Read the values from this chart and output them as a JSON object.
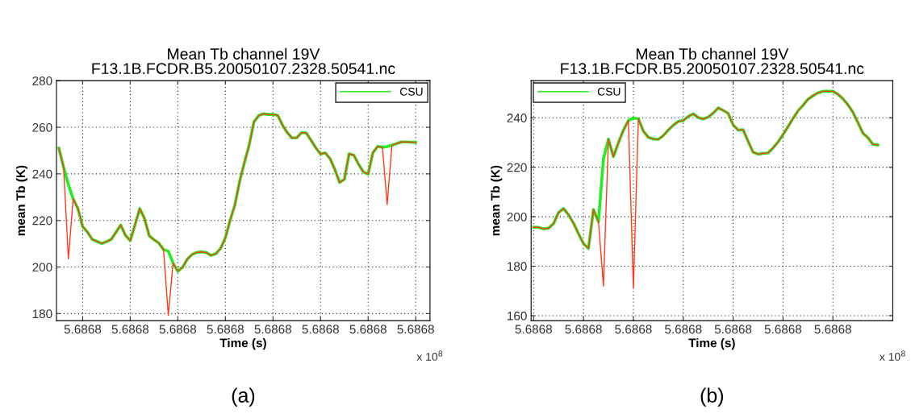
{
  "chart_data": [
    {
      "type": "line",
      "title": "Mean Tb channel 19V\nF13.1B.FCDR.B5.20050107.2328.50541.nc",
      "xlabel": "Time (s)",
      "ylabel": "mean Tb (K)",
      "annotations": [
        "x 10$^{8}$",
        "(a)"
      ],
      "categories": [
        null,
        null,
        null,
        null,
        null,
        "5.6868",
        null,
        null,
        null,
        null,
        null,
        null,
        null,
        null,
        null,
        "5.6868",
        null,
        null,
        null,
        null,
        null,
        null,
        null,
        null,
        null,
        "5.6868",
        null,
        null,
        null,
        null,
        null,
        null,
        null,
        null,
        null,
        "5.6868",
        null,
        null,
        null,
        null,
        null,
        null,
        null,
        null,
        null,
        "5.6868",
        null,
        null,
        null,
        null,
        null,
        null,
        null,
        null,
        null,
        "5.6868",
        null,
        null,
        null,
        null,
        null,
        null,
        null,
        null,
        null,
        "5.6868",
        null,
        null,
        null,
        null,
        null,
        null,
        null,
        null,
        null,
        "5.6868"
      ],
      "ylim": [
        177,
        280
      ],
      "yticks": [
        180,
        200,
        220,
        240,
        260,
        280
      ],
      "grid": true,
      "legend": "top right",
      "series": [
        {
          "name": "CSU",
          "color": "#22ee22",
          "values": [
            251.0,
            242.8,
            235.4,
            229.3,
            225.1,
            217.4,
            215.0,
            211.9,
            211.0,
            210.1,
            210.9,
            211.9,
            214.9,
            218.0,
            213.6,
            211.3,
            218.1,
            225.1,
            220.8,
            213.4,
            211.7,
            210.3,
            207.5,
            206.8,
            201.7,
            198.2,
            199.9,
            203.4,
            205.4,
            206.3,
            206.5,
            206.2,
            205.0,
            205.7,
            208.0,
            212.6,
            220.1,
            226.7,
            236.8,
            244.9,
            252.4,
            262.3,
            265.0,
            265.8,
            265.5,
            265.5,
            265.1,
            260.9,
            257.7,
            255.4,
            255.5,
            257.7,
            257.6,
            254.4,
            251.2,
            248.5,
            249.0,
            246.5,
            241.9,
            236.3,
            237.6,
            248.6,
            248.0,
            244.1,
            240.8,
            239.9,
            249.1,
            251.8,
            251.4,
            251.7,
            252.3,
            253.0,
            253.7,
            253.7,
            253.6,
            253.5
          ]
        },
        {
          "color": "#ff3a1a",
          "values": [
            251.0,
            242.8,
            203.5,
            229.3,
            225.1,
            217.4,
            215.0,
            211.9,
            211.0,
            210.1,
            210.9,
            211.9,
            214.9,
            218.0,
            213.6,
            211.3,
            218.1,
            225.1,
            220.8,
            213.4,
            211.7,
            210.3,
            207.5,
            179.3,
            201.7,
            198.2,
            199.9,
            203.4,
            205.4,
            206.3,
            206.5,
            206.2,
            205.0,
            205.7,
            208.0,
            212.6,
            220.1,
            226.7,
            236.8,
            244.9,
            252.4,
            262.3,
            265.0,
            265.8,
            265.5,
            265.5,
            265.1,
            260.9,
            257.7,
            255.4,
            255.5,
            257.7,
            257.6,
            254.4,
            251.2,
            248.5,
            249.0,
            246.5,
            241.9,
            236.3,
            237.6,
            248.6,
            248.0,
            244.1,
            240.8,
            239.9,
            249.1,
            251.8,
            251.4,
            226.8,
            252.3,
            253.0,
            253.7,
            253.7,
            253.6,
            253.5
          ]
        }
      ]
    },
    {
      "type": "line",
      "title": "Mean Tb channel 19V\nF13.1B.FCDR.B5.20050107.2328.50541.nc",
      "xlabel": "Time (s)",
      "ylabel": "mean Tb (K)",
      "annotations": [
        "x 10$^{8}$",
        "(b)"
      ],
      "categories": [
        "5.6868",
        null,
        null,
        null,
        null,
        null,
        null,
        null,
        null,
        null,
        "5.6868",
        null,
        null,
        null,
        null,
        null,
        null,
        null,
        null,
        null,
        "5.6868",
        null,
        null,
        null,
        null,
        null,
        null,
        null,
        null,
        null,
        "5.6868",
        null,
        null,
        null,
        null,
        null,
        null,
        null,
        null,
        null,
        "5.6868",
        null,
        null,
        null,
        null,
        null,
        null,
        null,
        null,
        null,
        "5.6868",
        null,
        null,
        null,
        null,
        null,
        null,
        null,
        null,
        null,
        "5.6868",
        null,
        null,
        null,
        null,
        null,
        null,
        null,
        null,
        null
      ],
      "ylim": [
        158,
        255
      ],
      "yticks": [
        160,
        180,
        200,
        220,
        240
      ],
      "grid": true,
      "legend": "top left",
      "series": [
        {
          "name": "CSU",
          "color": "#22ee22",
          "values": [
            195.8,
            195.7,
            195.1,
            195.4,
            197.2,
            201.7,
            203.3,
            200.8,
            197.4,
            193.1,
            189.1,
            187.2,
            202.9,
            198.0,
            223.4,
            231.4,
            224.3,
            229.9,
            235.0,
            238.9,
            239.9,
            239.6,
            234.6,
            232.1,
            231.4,
            231.3,
            232.8,
            235.0,
            237.0,
            238.5,
            238.9,
            240.5,
            241.6,
            240.1,
            239.5,
            240.3,
            241.9,
            244.0,
            243.0,
            241.8,
            237.1,
            235.0,
            235.2,
            230.5,
            226.1,
            225.3,
            225.6,
            225.8,
            227.8,
            230.2,
            233.2,
            236.4,
            239.7,
            242.8,
            245.0,
            247.5,
            248.9,
            250.1,
            250.7,
            250.7,
            250.7,
            249.5,
            247.7,
            245.3,
            242.3,
            238.1,
            233.8,
            232.0,
            229.3,
            229.0
          ]
        },
        {
          "color": "#ff3a1a",
          "values": [
            195.8,
            195.7,
            195.1,
            195.4,
            197.2,
            201.7,
            203.3,
            200.8,
            197.4,
            193.1,
            189.1,
            187.2,
            202.9,
            198.0,
            172.0,
            231.4,
            224.3,
            229.9,
            235.0,
            238.9,
            171.1,
            239.6,
            234.6,
            232.1,
            231.4,
            231.3,
            232.8,
            235.0,
            237.0,
            238.5,
            238.9,
            240.5,
            241.6,
            240.1,
            239.5,
            240.3,
            241.9,
            244.0,
            243.0,
            241.8,
            237.1,
            235.0,
            235.2,
            230.5,
            226.1,
            225.3,
            225.6,
            225.8,
            227.8,
            230.2,
            233.2,
            236.4,
            239.7,
            242.8,
            245.0,
            247.5,
            248.9,
            250.1,
            250.7,
            250.7,
            250.7,
            249.5,
            247.7,
            245.3,
            242.3,
            238.1,
            233.8,
            232.0,
            229.3,
            229.0
          ]
        }
      ]
    }
  ]
}
